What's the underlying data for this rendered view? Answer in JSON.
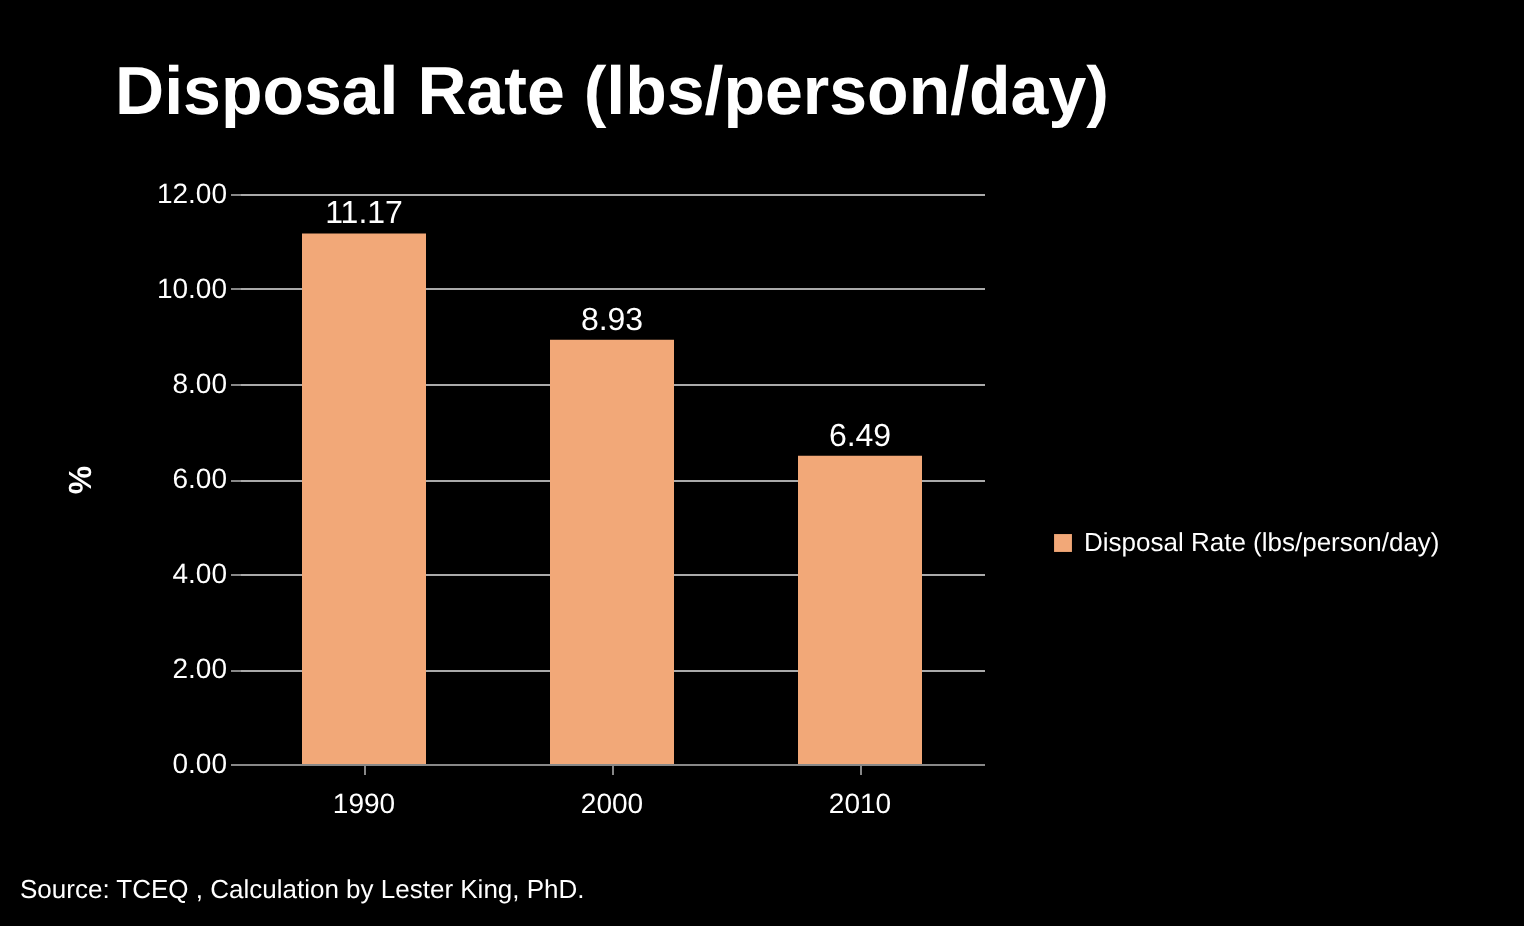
{
  "chart_data": {
    "type": "bar",
    "title": "Disposal Rate (lbs/person/day)",
    "ylabel": "%",
    "categories": [
      "1990",
      "2000",
      "2010"
    ],
    "series": [
      {
        "name": "Disposal Rate (lbs/person/day)",
        "color": "#f2a878",
        "values": [
          11.17,
          8.93,
          6.49
        ]
      }
    ],
    "ylim": [
      0,
      12
    ],
    "yticks": [
      {
        "value": 0,
        "label": "0.00"
      },
      {
        "value": 2,
        "label": "2.00"
      },
      {
        "value": 4,
        "label": "4.00"
      },
      {
        "value": 6,
        "label": "6.00"
      },
      {
        "value": 8,
        "label": "8.00"
      },
      {
        "value": 10,
        "label": "10.00"
      },
      {
        "value": 12,
        "label": "12.00"
      }
    ],
    "grid": "y",
    "legend": "right",
    "data_labels": true,
    "annotations": [
      "Source: TCEQ , Calculation by Lester King, PhD."
    ]
  }
}
